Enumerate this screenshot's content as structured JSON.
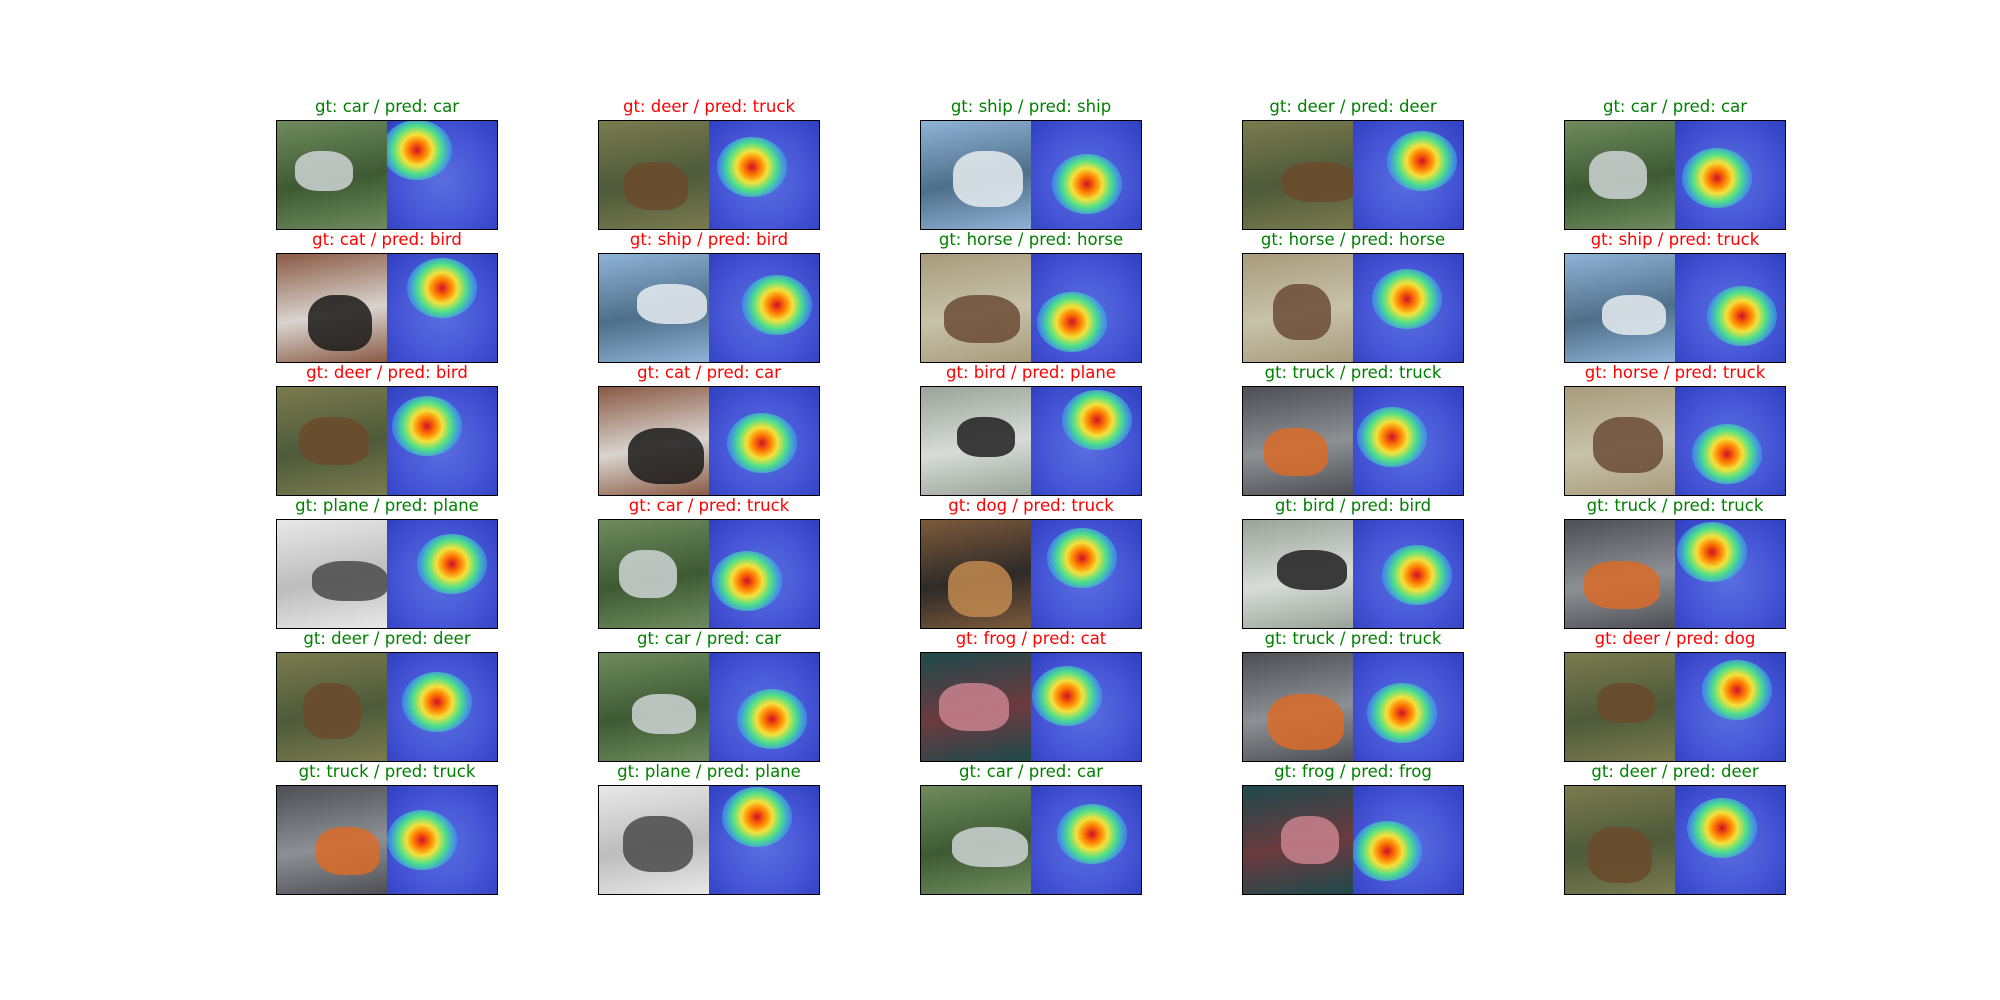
{
  "figure": {
    "columns": 5,
    "rows": 6,
    "colors": {
      "correct": "#008000",
      "wrong": "#ff0000",
      "frame": "#000000"
    },
    "cells": [
      {
        "title": "gt: car / pred: car",
        "correct": true,
        "photo": "car"
      },
      {
        "title": "gt: deer / pred: truck",
        "correct": false,
        "photo": "deer"
      },
      {
        "title": "gt: ship / pred: ship",
        "correct": true,
        "photo": "ship"
      },
      {
        "title": "gt: deer / pred: deer",
        "correct": true,
        "photo": "deer"
      },
      {
        "title": "gt: car / pred: car",
        "correct": true,
        "photo": "car"
      },
      {
        "title": "gt: cat / pred: bird",
        "correct": false,
        "photo": "cat"
      },
      {
        "title": "gt: ship / pred: bird",
        "correct": false,
        "photo": "ship"
      },
      {
        "title": "gt: horse / pred: horse",
        "correct": true,
        "photo": "horse"
      },
      {
        "title": "gt: horse / pred: horse",
        "correct": true,
        "photo": "horse"
      },
      {
        "title": "gt: ship / pred: truck",
        "correct": false,
        "photo": "ship"
      },
      {
        "title": "gt: deer / pred: bird",
        "correct": false,
        "photo": "deer"
      },
      {
        "title": "gt: cat / pred: car",
        "correct": false,
        "photo": "cat"
      },
      {
        "title": "gt: bird / pred: plane",
        "correct": false,
        "photo": "bird"
      },
      {
        "title": "gt: truck / pred: truck",
        "correct": true,
        "photo": "truck"
      },
      {
        "title": "gt: horse / pred: truck",
        "correct": false,
        "photo": "horse"
      },
      {
        "title": "gt: plane / pred: plane",
        "correct": true,
        "photo": "plane"
      },
      {
        "title": "gt: car / pred: truck",
        "correct": false,
        "photo": "car"
      },
      {
        "title": "gt: dog / pred: truck",
        "correct": false,
        "photo": "dog"
      },
      {
        "title": "gt: bird / pred: bird",
        "correct": true,
        "photo": "bird"
      },
      {
        "title": "gt: truck / pred: truck",
        "correct": true,
        "photo": "truck"
      },
      {
        "title": "gt: deer / pred: deer",
        "correct": true,
        "photo": "deer"
      },
      {
        "title": "gt: car / pred: car",
        "correct": true,
        "photo": "car"
      },
      {
        "title": "gt: frog / pred: cat",
        "correct": false,
        "photo": "frog"
      },
      {
        "title": "gt: truck / pred: truck",
        "correct": true,
        "photo": "truck"
      },
      {
        "title": "gt: deer / pred: dog",
        "correct": false,
        "photo": "deer"
      },
      {
        "title": "gt: truck / pred: truck",
        "correct": true,
        "photo": "truck"
      },
      {
        "title": "gt: plane / pred: plane",
        "correct": true,
        "photo": "plane"
      },
      {
        "title": "gt: car / pred: car",
        "correct": true,
        "photo": "car"
      },
      {
        "title": "gt: frog / pred: frog",
        "correct": true,
        "photo": "frog"
      },
      {
        "title": "gt: deer / pred: deer",
        "correct": true,
        "photo": "deer"
      }
    ]
  }
}
